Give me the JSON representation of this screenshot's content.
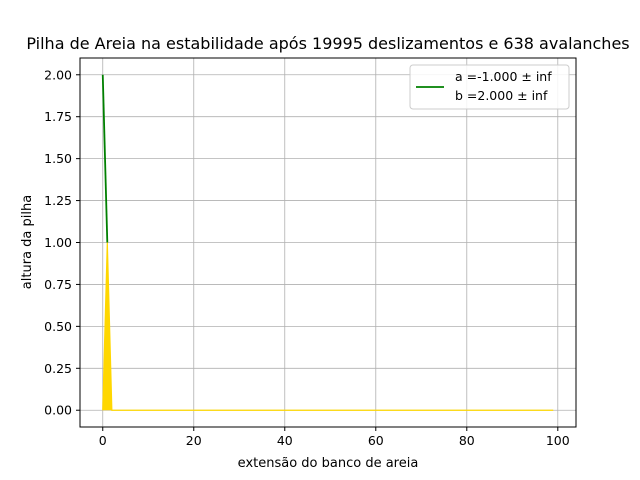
{
  "chart_data": {
    "type": "line",
    "title": "Pilha de Areia na estabilidade após 19995 deslizamentos e 638 avalanches",
    "xlabel": "extensão do banco de areia",
    "ylabel": "altura da pilha",
    "xlim": [
      -5,
      104
    ],
    "ylim": [
      -0.1,
      2.1
    ],
    "xticks": [
      0,
      20,
      40,
      60,
      80,
      100
    ],
    "yticks": [
      0.0,
      0.25,
      0.5,
      0.75,
      1.0,
      1.25,
      1.5,
      1.75,
      2.0
    ],
    "xtick_labels": [
      "0",
      "20",
      "40",
      "60",
      "80",
      "100"
    ],
    "ytick_labels": [
      "0.00",
      "0.25",
      "0.50",
      "0.75",
      "1.00",
      "1.25",
      "1.50",
      "1.75",
      "2.00"
    ],
    "grid": true,
    "legend_position": "top-right",
    "series": [
      {
        "name": "a =-1.000 ± inf\nb =2.000 ± inf",
        "kind": "fit-line",
        "color": "#008000",
        "x": [
          0,
          1
        ],
        "y": [
          2,
          1
        ]
      },
      {
        "kind": "filled-profile",
        "color": "#ffd700",
        "x": [
          0,
          1,
          2,
          99
        ],
        "y": [
          0,
          1,
          0,
          0
        ]
      }
    ],
    "legend": [
      {
        "lines": [
          "a =-1.000 ± inf",
          "b =2.000 ± inf"
        ],
        "color": "#008000"
      }
    ]
  }
}
